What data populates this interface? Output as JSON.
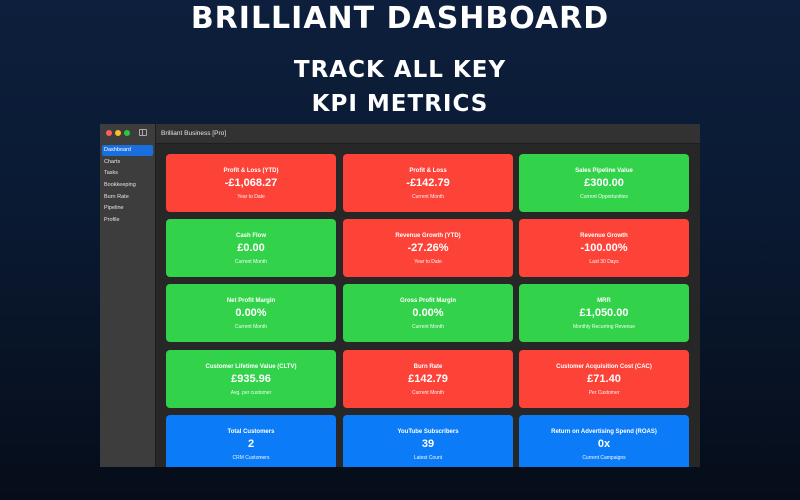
{
  "marketing": {
    "headline": "Brilliant Dashboard",
    "subhead_line1": "Track all key",
    "subhead_line2": "KPI Metrics"
  },
  "window": {
    "title": "Brilliant Business [Pro]"
  },
  "sidebar": {
    "items": [
      {
        "label": "Dashboard",
        "active": true
      },
      {
        "label": "Charts"
      },
      {
        "label": "Tasks"
      },
      {
        "label": "Bookkeeping"
      },
      {
        "label": "Burn Rate"
      },
      {
        "label": "Pipeline"
      },
      {
        "label": "Profile"
      }
    ]
  },
  "cards": [
    {
      "title": "Profit & Loss (YTD)",
      "value": "-£1,068.27",
      "subtitle": "Year to Date",
      "color": "red"
    },
    {
      "title": "Profit & Loss",
      "value": "-£142.79",
      "subtitle": "Current Month",
      "color": "red"
    },
    {
      "title": "Sales Pipeline Value",
      "value": "£300.00",
      "subtitle": "Current Opportunities",
      "color": "green"
    },
    {
      "title": "Cash Flow",
      "value": "£0.00",
      "subtitle": "Current Month",
      "color": "green"
    },
    {
      "title": "Revenue Growth (YTD)",
      "value": "-27.26%",
      "subtitle": "Year to Date",
      "color": "red"
    },
    {
      "title": "Revenue Growth",
      "value": "-100.00%",
      "subtitle": "Last 30 Days",
      "color": "red"
    },
    {
      "title": "Net Profit Margin",
      "value": "0.00%",
      "subtitle": "Current Month",
      "color": "green"
    },
    {
      "title": "Gross Profit Margin",
      "value": "0.00%",
      "subtitle": "Current Month",
      "color": "green"
    },
    {
      "title": "MRR",
      "value": "£1,050.00",
      "subtitle": "Monthly Recurring Revenue",
      "color": "green"
    },
    {
      "title": "Customer Lifetime Value (CLTV)",
      "value": "£935.96",
      "subtitle": "Avg. per customer",
      "color": "green"
    },
    {
      "title": "Burn Rate",
      "value": "£142.79",
      "subtitle": "Current Month",
      "color": "red"
    },
    {
      "title": "Customer Acquisition Cost (CAC)",
      "value": "£71.40",
      "subtitle": "Per Customer",
      "color": "red"
    },
    {
      "title": "Total Customers",
      "value": "2",
      "subtitle": "CRM Customers",
      "color": "blue"
    },
    {
      "title": "YouTube Subscribers",
      "value": "39",
      "subtitle": "Latest Count",
      "color": "blue"
    },
    {
      "title": "Return on Advertising Spend (ROAS)",
      "value": "0x",
      "subtitle": "Current Campaigns",
      "color": "blue"
    }
  ],
  "colors": {
    "red": "#fd4238",
    "green": "#32d34a",
    "blue": "#0c7bf8",
    "accent": "#1a6fe0"
  }
}
